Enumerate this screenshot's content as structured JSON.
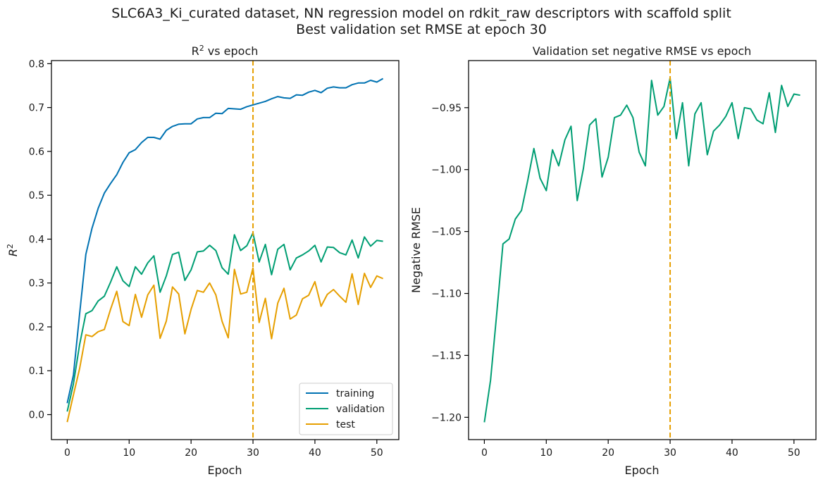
{
  "figure": {
    "title_line1": "SLC6A3_Ki_curated dataset, NN regression model on rdkit_raw descriptors with scaffold split",
    "title_line2": "Best validation set RMSE at epoch 30"
  },
  "colors": {
    "training": "#0072B2",
    "validation": "#009E73",
    "test": "#E69F00",
    "best_epoch_line": "#E69F00"
  },
  "chart_data": [
    {
      "type": "line",
      "title_prefix": "R",
      "title_sup": "2",
      "title_suffix": " vs epoch",
      "xlabel": "Epoch",
      "ylabel_base": "R",
      "ylabel_sup": "2",
      "xlim": [
        -2.55,
        53.55
      ],
      "ylim": [
        -0.057,
        0.807
      ],
      "xticks": [
        0,
        10,
        20,
        30,
        40,
        50
      ],
      "xtick_labels": [
        "0",
        "10",
        "20",
        "30",
        "40",
        "50"
      ],
      "yticks": [
        0.0,
        0.1,
        0.2,
        0.3,
        0.4,
        0.5,
        0.6,
        0.7,
        0.8
      ],
      "ytick_labels": [
        "0.0",
        "0.1",
        "0.2",
        "0.3",
        "0.4",
        "0.5",
        "0.6",
        "0.7",
        "0.8"
      ],
      "best_epoch": 30,
      "legend_position": "lower-right",
      "x": [
        0,
        1,
        2,
        3,
        4,
        5,
        6,
        7,
        8,
        9,
        10,
        11,
        12,
        13,
        14,
        15,
        16,
        17,
        18,
        19,
        20,
        21,
        22,
        23,
        24,
        25,
        26,
        27,
        28,
        29,
        30,
        31,
        32,
        33,
        34,
        35,
        36,
        37,
        38,
        39,
        40,
        41,
        42,
        43,
        44,
        45,
        46,
        47,
        48,
        49,
        50,
        51
      ],
      "series": [
        {
          "name": "training",
          "color_key": "training",
          "values": [
            0.026,
            0.09,
            0.23,
            0.365,
            0.425,
            0.47,
            0.505,
            0.527,
            0.547,
            0.575,
            0.597,
            0.604,
            0.62,
            0.632,
            0.632,
            0.628,
            0.648,
            0.657,
            0.662,
            0.663,
            0.663,
            0.674,
            0.677,
            0.677,
            0.687,
            0.686,
            0.698,
            0.697,
            0.696,
            0.702,
            0.706,
            0.71,
            0.714,
            0.72,
            0.725,
            0.722,
            0.721,
            0.729,
            0.728,
            0.735,
            0.739,
            0.734,
            0.744,
            0.747,
            0.745,
            0.745,
            0.752,
            0.756,
            0.756,
            0.762,
            0.758,
            0.766
          ]
        },
        {
          "name": "validation",
          "color_key": "validation",
          "values": [
            0.007,
            0.07,
            0.16,
            0.23,
            0.237,
            0.259,
            0.27,
            0.302,
            0.337,
            0.305,
            0.292,
            0.337,
            0.32,
            0.346,
            0.362,
            0.279,
            0.316,
            0.365,
            0.37,
            0.306,
            0.33,
            0.371,
            0.373,
            0.386,
            0.374,
            0.335,
            0.32,
            0.41,
            0.374,
            0.385,
            0.414,
            0.348,
            0.388,
            0.319,
            0.377,
            0.388,
            0.33,
            0.357,
            0.364,
            0.373,
            0.386,
            0.348,
            0.382,
            0.381,
            0.369,
            0.364,
            0.398,
            0.357,
            0.405,
            0.384,
            0.397,
            0.395
          ]
        },
        {
          "name": "test",
          "color_key": "test",
          "values": [
            -0.017,
            0.045,
            0.105,
            0.182,
            0.178,
            0.189,
            0.194,
            0.24,
            0.281,
            0.212,
            0.203,
            0.274,
            0.222,
            0.273,
            0.295,
            0.174,
            0.213,
            0.291,
            0.275,
            0.184,
            0.24,
            0.283,
            0.279,
            0.3,
            0.273,
            0.213,
            0.175,
            0.331,
            0.275,
            0.279,
            0.334,
            0.21,
            0.265,
            0.173,
            0.254,
            0.288,
            0.218,
            0.227,
            0.264,
            0.272,
            0.303,
            0.247,
            0.274,
            0.285,
            0.27,
            0.256,
            0.321,
            0.251,
            0.322,
            0.29,
            0.316,
            0.31
          ]
        }
      ]
    },
    {
      "type": "line",
      "title": "Validation set negative RMSE vs epoch",
      "xlabel": "Epoch",
      "ylabel": "Negative RMSE",
      "xlim": [
        -2.55,
        53.55
      ],
      "ylim": [
        -1.218,
        -0.912
      ],
      "xticks": [
        0,
        10,
        20,
        30,
        40,
        50
      ],
      "xtick_labels": [
        "0",
        "10",
        "20",
        "30",
        "40",
        "50"
      ],
      "yticks": [
        -1.2,
        -1.15,
        -1.1,
        -1.05,
        -1.0,
        -0.95
      ],
      "ytick_labels": [
        "−1.20",
        "−1.15",
        "−1.10",
        "−1.05",
        "−1.00",
        "−0.95"
      ],
      "best_epoch": 30,
      "x": [
        0,
        1,
        2,
        3,
        4,
        5,
        6,
        7,
        8,
        9,
        10,
        11,
        12,
        13,
        14,
        15,
        16,
        17,
        18,
        19,
        20,
        21,
        22,
        23,
        24,
        25,
        26,
        27,
        28,
        29,
        30,
        31,
        32,
        33,
        34,
        35,
        36,
        37,
        38,
        39,
        40,
        41,
        42,
        43,
        44,
        45,
        46,
        47,
        48,
        49,
        50,
        51
      ],
      "series": [
        {
          "name": "validation",
          "color_key": "validation",
          "values": [
            -1.204,
            -1.17,
            -1.116,
            -1.06,
            -1.056,
            -1.04,
            -1.033,
            -1.009,
            -0.983,
            -1.007,
            -1.017,
            -0.984,
            -0.997,
            -0.976,
            -0.965,
            -1.025,
            -0.999,
            -0.964,
            -0.959,
            -1.006,
            -0.99,
            -0.958,
            -0.956,
            -0.948,
            -0.958,
            -0.986,
            -0.997,
            -0.928,
            -0.956,
            -0.949,
            -0.926,
            -0.975,
            -0.946,
            -0.997,
            -0.955,
            -0.946,
            -0.988,
            -0.969,
            -0.964,
            -0.957,
            -0.946,
            -0.975,
            -0.95,
            -0.951,
            -0.96,
            -0.963,
            -0.938,
            -0.97,
            -0.932,
            -0.949,
            -0.939,
            -0.94
          ]
        }
      ]
    }
  ]
}
